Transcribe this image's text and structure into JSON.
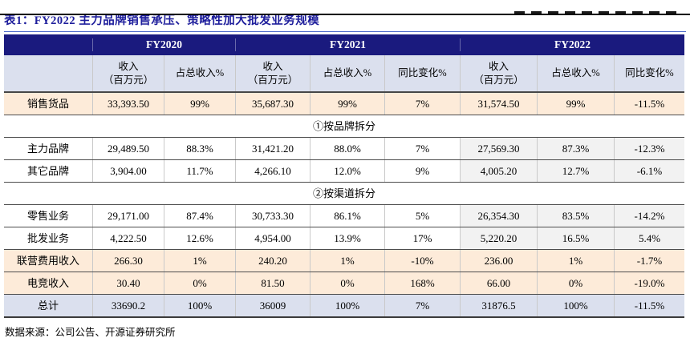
{
  "page": {
    "title_label": "表1：",
    "title": "FY2022 主力品牌销售承压、策略性加大批发业务规模",
    "source": "数据来源：公司公告、开源证券研究所"
  },
  "colors": {
    "header_navy": "#1a1a7e",
    "title_blue": "#1e1e9c",
    "title_underline_blue": "#4a68c8",
    "subheader_bg": "#dbe0ee",
    "highlight_peach": "#fdebd9",
    "fy2022_gray": "#f2f2f2",
    "total_row_bg": "#dbe0ee"
  },
  "table": {
    "year_groups": [
      {
        "label": "FY2020"
      },
      {
        "label": "FY2021"
      },
      {
        "label": "FY2022"
      }
    ],
    "subheaders": [
      "收入\n（百万元）",
      "占总收入%",
      "收入\n（百万元）",
      "占总收入%",
      "同比变化%",
      "收入\n（百万元）",
      "占总收入%",
      "同比变化%"
    ],
    "rows": [
      {
        "type": "data",
        "style": "peach",
        "cells": [
          "销售货品",
          "33,393.50",
          "99%",
          "35,687.30",
          "99%",
          "7%",
          "31,574.50",
          "99%",
          "-11.5%"
        ]
      },
      {
        "type": "section",
        "label": "①按品牌拆分"
      },
      {
        "type": "data",
        "style": "white",
        "fy22_gray": true,
        "cells": [
          "主力品牌",
          "29,489.50",
          "88.3%",
          "31,421.20",
          "88.0%",
          "7%",
          "27,569.30",
          "87.3%",
          "-12.3%"
        ]
      },
      {
        "type": "data",
        "style": "white",
        "fy22_gray": true,
        "cells": [
          "其它品牌",
          "3,904.00",
          "11.7%",
          "4,266.10",
          "12.0%",
          "9%",
          "4,005.20",
          "12.7%",
          "-6.1%"
        ]
      },
      {
        "type": "section",
        "label": "②按渠道拆分"
      },
      {
        "type": "data",
        "style": "white",
        "fy22_gray": true,
        "cells": [
          "零售业务",
          "29,171.00",
          "87.4%",
          "30,733.30",
          "86.1%",
          "5%",
          "26,354.30",
          "83.5%",
          "-14.2%"
        ]
      },
      {
        "type": "data",
        "style": "white",
        "fy22_gray": true,
        "cells": [
          "批发业务",
          "4,222.50",
          "12.6%",
          "4,954.00",
          "13.9%",
          "17%",
          "5,220.20",
          "16.5%",
          "5.4%"
        ]
      },
      {
        "type": "data",
        "style": "peach",
        "cells": [
          "联营费用收入",
          "266.30",
          "1%",
          "240.20",
          "1%",
          "-10%",
          "236.00",
          "1%",
          "-1.7%"
        ]
      },
      {
        "type": "data",
        "style": "peach",
        "cells": [
          "电竞收入",
          "30.40",
          "0%",
          "81.50",
          "0%",
          "168%",
          "66.00",
          "0%",
          "-19.0%"
        ]
      },
      {
        "type": "data",
        "style": "total",
        "cells": [
          "总计",
          "33690.2",
          "100%",
          "36009",
          "100%",
          "7%",
          "31876.5",
          "100%",
          "-11.5%"
        ]
      }
    ]
  }
}
